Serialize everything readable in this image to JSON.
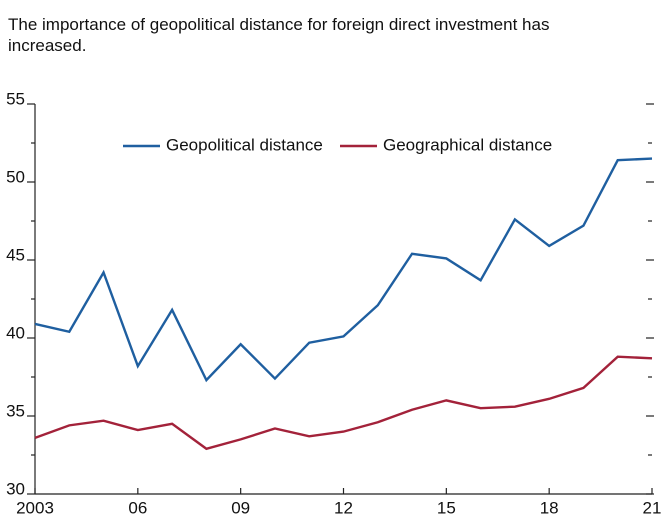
{
  "chart_data": {
    "type": "line",
    "title": "The importance of geopolitical distance for foreign direct investment has increased.",
    "x": [
      2003,
      2004,
      2005,
      2006,
      2007,
      2008,
      2009,
      2010,
      2011,
      2012,
      2013,
      2014,
      2015,
      2016,
      2017,
      2018,
      2019,
      2020,
      2021
    ],
    "series": [
      {
        "name": "Geopolitical distance",
        "color": "#1f5fa0",
        "values": [
          40.9,
          40.4,
          44.2,
          38.2,
          41.8,
          37.3,
          39.6,
          37.4,
          39.7,
          40.1,
          42.1,
          45.4,
          45.1,
          43.7,
          47.6,
          45.9,
          47.2,
          51.4,
          51.5
        ]
      },
      {
        "name": "Geographical distance",
        "color": "#a3223a",
        "values": [
          33.6,
          34.4,
          34.7,
          34.1,
          34.5,
          32.9,
          33.5,
          34.2,
          33.7,
          34.0,
          34.6,
          35.4,
          36.0,
          35.5,
          35.6,
          36.1,
          36.8,
          38.8,
          38.7
        ]
      }
    ],
    "xlim": [
      2003,
      2021
    ],
    "xticks": [
      {
        "value": 2003,
        "label": "2003"
      },
      {
        "value": 2006,
        "label": "06"
      },
      {
        "value": 2009,
        "label": "09"
      },
      {
        "value": 2012,
        "label": "12"
      },
      {
        "value": 2015,
        "label": "15"
      },
      {
        "value": 2018,
        "label": "18"
      },
      {
        "value": 2021,
        "label": "21"
      }
    ],
    "ylim": [
      30,
      55
    ],
    "yticks": [
      30,
      35,
      40,
      45,
      50,
      55
    ],
    "yticks_minor": [
      32.5,
      37.5,
      42.5,
      47.5,
      52.5
    ],
    "legend": "top"
  }
}
